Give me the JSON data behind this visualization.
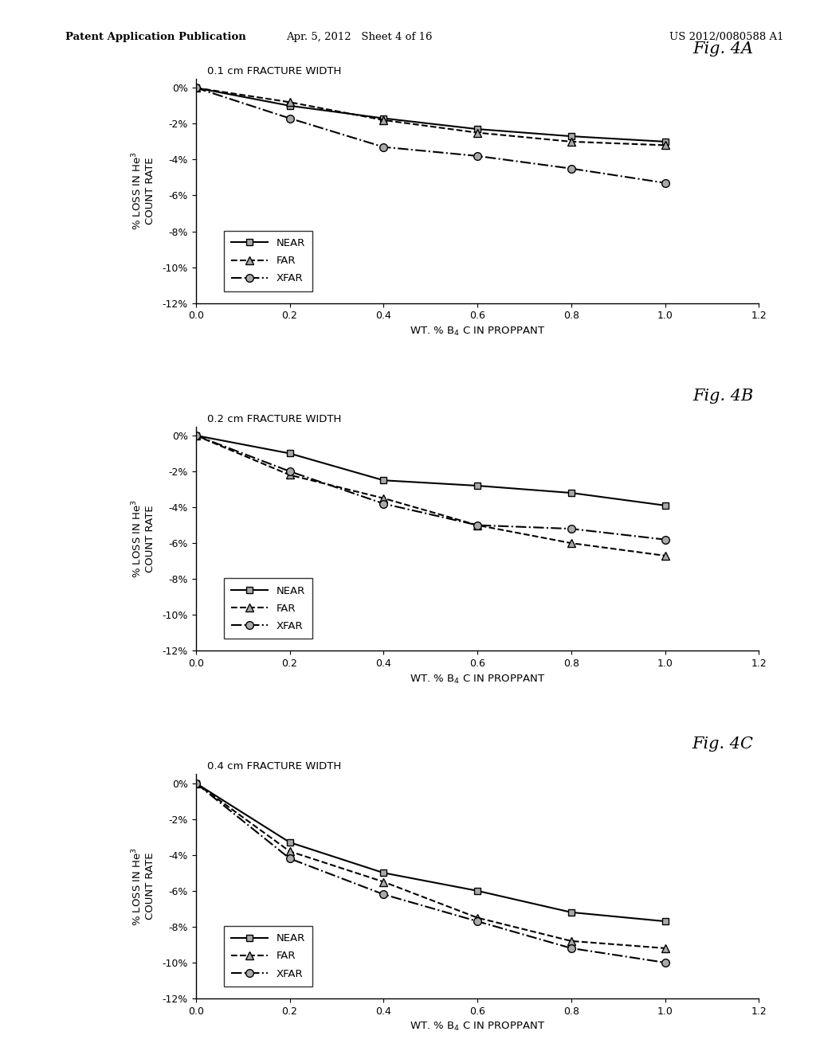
{
  "x": [
    0.0,
    0.2,
    0.4,
    0.6,
    0.8,
    1.0
  ],
  "charts": [
    {
      "title_inline": "0.1 cm FRACTURE WIDTH",
      "fig_label": "Fig. 4A",
      "near": [
        0,
        -1.0,
        -1.7,
        -2.3,
        -2.7,
        -3.0
      ],
      "far": [
        0,
        -0.8,
        -1.8,
        -2.5,
        -3.0,
        -3.2
      ],
      "xfar": [
        0,
        -1.7,
        -3.3,
        -3.8,
        -4.5,
        -5.3
      ]
    },
    {
      "title_inline": "0.2 cm FRACTURE WIDTH",
      "fig_label": "Fig. 4B",
      "near": [
        0,
        -1.0,
        -2.5,
        -2.8,
        -3.2,
        -3.9
      ],
      "far": [
        0,
        -2.2,
        -3.5,
        -5.0,
        -6.0,
        -6.7
      ],
      "xfar": [
        0,
        -2.0,
        -3.8,
        -5.0,
        -5.2,
        -5.8
      ]
    },
    {
      "title_inline": "0.4 cm FRACTURE WIDTH",
      "fig_label": "Fig. 4C",
      "near": [
        0,
        -3.3,
        -5.0,
        -6.0,
        -7.2,
        -7.7
      ],
      "far": [
        0,
        -3.8,
        -5.5,
        -7.5,
        -8.8,
        -9.2
      ],
      "xfar": [
        0,
        -4.2,
        -6.2,
        -7.7,
        -9.2,
        -10.0
      ]
    }
  ],
  "ylabel": "% LOSS IN He$^3$\nCOUNT RATE",
  "ylim": [
    -12,
    0.5
  ],
  "yticks": [
    0,
    -2,
    -4,
    -6,
    -8,
    -10,
    -12
  ],
  "ytick_labels": [
    "0%",
    "-2%",
    "-4%",
    "-6%",
    "-8%",
    "-10%",
    "-12%"
  ],
  "xlim": [
    0.0,
    1.2
  ],
  "xticks": [
    0.0,
    0.2,
    0.4,
    0.6,
    0.8,
    1.0,
    1.2
  ],
  "background_color": "#ffffff",
  "header_left": "Patent Application Publication",
  "header_center": "Apr. 5, 2012   Sheet 4 of 16",
  "header_right": "US 2012/0080588 A1"
}
